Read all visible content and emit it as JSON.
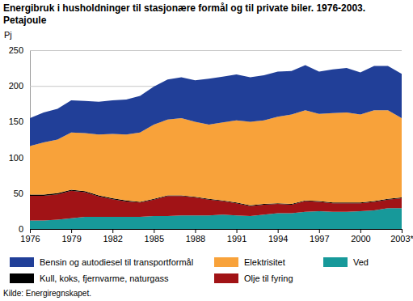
{
  "chart_data": {
    "type": "area",
    "stacked": true,
    "title": "Energibruk i husholdninger til stasjonære formål og til private biler. 1976-2003.",
    "subtitle": "Petajoule",
    "y_label": "Pj",
    "source": "Kilde: Energiregnskapet.",
    "x": [
      1976,
      1977,
      1978,
      1979,
      1980,
      1981,
      1982,
      1983,
      1984,
      1985,
      1986,
      1987,
      1988,
      1989,
      1990,
      1991,
      1992,
      1993,
      1994,
      1995,
      1996,
      1997,
      1998,
      1999,
      2000,
      2001,
      2002,
      2003
    ],
    "xlim": [
      1976,
      2003
    ],
    "xticks": [
      1976,
      1979,
      1982,
      1985,
      1988,
      1991,
      1994,
      1997,
      2000,
      {
        "value": 2003,
        "label": "2003*"
      }
    ],
    "ylim": [
      0,
      250
    ],
    "yticks": [
      0,
      50,
      100,
      150,
      200,
      250
    ],
    "grid": true,
    "series": [
      {
        "name": "Ved",
        "color": "#17999a",
        "values": [
          12,
          12,
          13,
          15,
          17,
          17,
          17,
          17,
          17,
          18,
          18,
          19,
          19,
          19,
          20,
          19,
          18,
          20,
          22,
          22,
          24,
          25,
          24,
          24,
          25,
          26,
          29,
          29
        ]
      },
      {
        "name": "Olje til fyring",
        "color": "#a11316",
        "values": [
          34.5,
          34.5,
          35.5,
          38.5,
          34.5,
          28.5,
          24.5,
          21.5,
          20,
          23,
          28,
          27,
          25,
          22,
          19,
          17,
          14,
          14,
          13,
          12,
          15,
          13,
          12,
          12,
          11,
          12,
          12,
          14
        ]
      },
      {
        "name": "Kull, koks, fjernvarme, naturgass",
        "color": "#000000",
        "values": [
          1.5,
          1.5,
          1.5,
          1.5,
          1.5,
          1.5,
          1.5,
          1.5,
          1,
          1,
          1,
          1,
          1,
          1,
          1,
          1,
          1,
          1,
          1,
          1,
          1,
          1,
          1,
          1,
          1,
          1,
          1,
          1
        ]
      },
      {
        "name": "Elektrisitet",
        "color": "#f8a23a",
        "values": [
          68,
          73,
          75,
          80,
          81,
          85,
          90,
          92,
          97,
          104,
          106,
          108,
          105,
          104,
          109,
          115,
          117,
          117,
          121,
          125,
          126,
          122,
          125,
          126,
          123,
          127,
          124,
          111
        ]
      },
      {
        "name": "Bensin og autodiesel til transportformål",
        "color": "#213f98",
        "values": [
          39,
          42,
          43,
          45,
          45,
          46,
          47,
          49,
          51,
          53,
          56,
          57,
          58,
          64,
          64,
          64,
          62,
          63,
          63,
          61,
          63,
          59,
          61,
          62,
          59,
          62,
          62,
          62
        ]
      }
    ]
  }
}
